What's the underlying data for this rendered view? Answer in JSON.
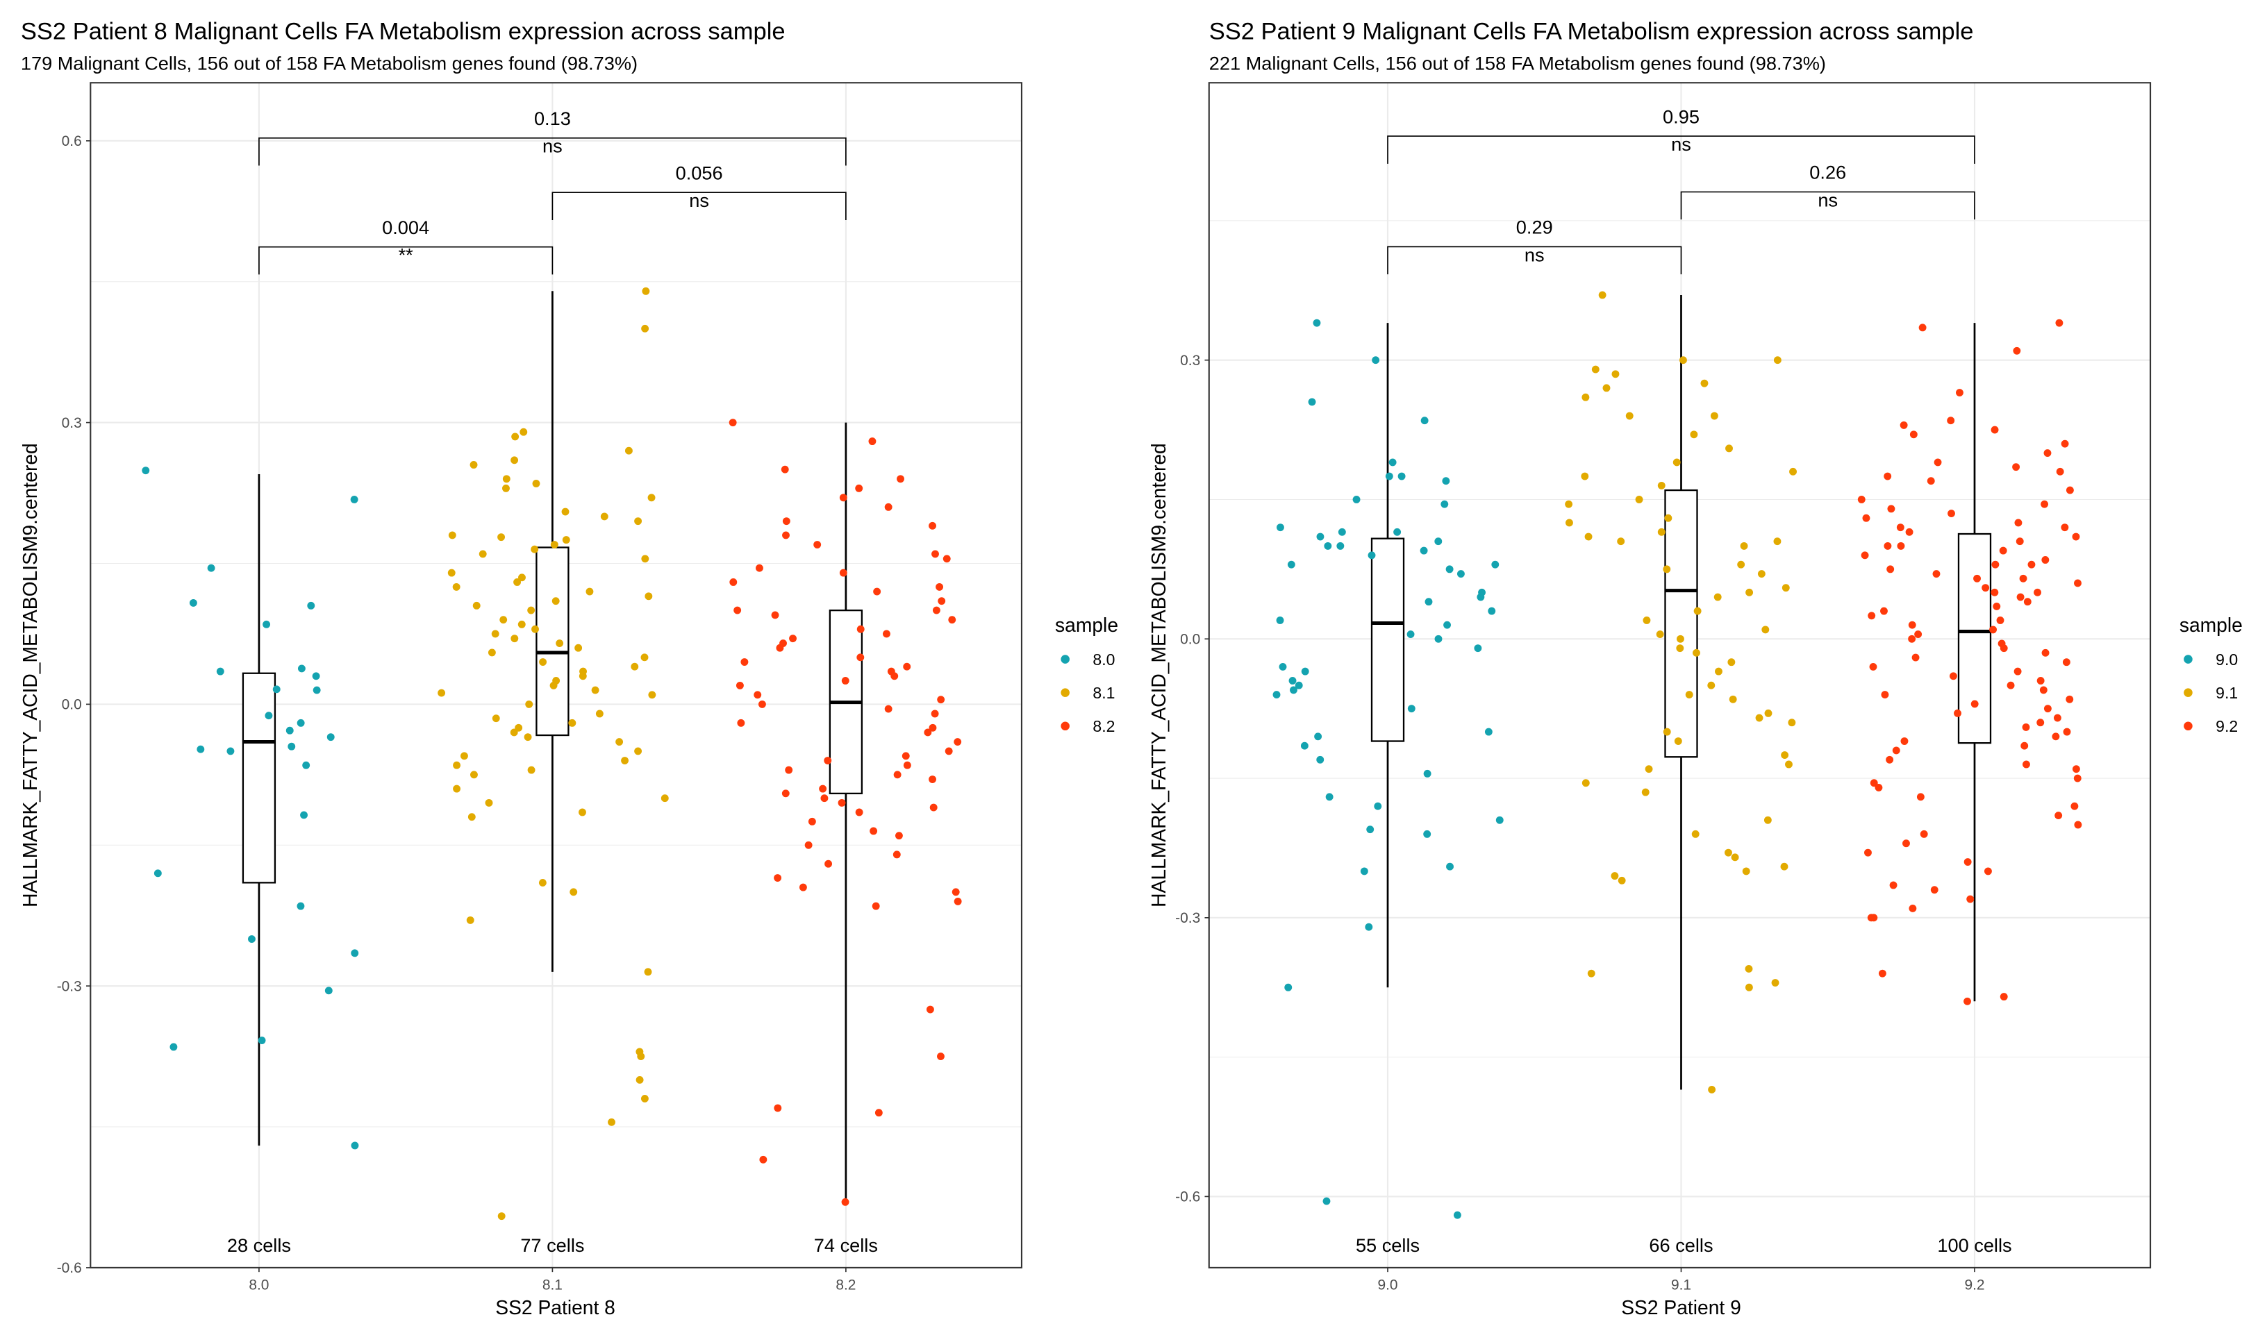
{
  "chart_data": [
    {
      "type": "box+jitter",
      "title": "SS2 Patient 8 Malignant Cells FA Metabolism expression across sample",
      "subtitle": "179 Malignant Cells, 156 out of 158 FA Metabolism genes found (98.73%)",
      "xlabel": "SS2 Patient 8",
      "ylabel": "HALLMARK_FATTY_ACID_METABOLISM9.centered",
      "ylim": [
        -0.6,
        0.66
      ],
      "yticks": [
        -0.6,
        -0.3,
        0.0,
        0.3,
        0.6
      ],
      "ytick_labels": [
        "-0.6",
        "-0.3",
        "0.0",
        "0.3",
        "0.6"
      ],
      "grid": true,
      "legend": {
        "title": "sample",
        "placement": "right"
      },
      "categories": [
        "8.0",
        "8.1",
        "8.2"
      ],
      "colors": [
        "#14A3B0",
        "#E2AA00",
        "#FF3A0A"
      ],
      "cell_labels": [
        "28 cells",
        "77 cells",
        "74 cells"
      ],
      "boxes": [
        {
          "median": -0.04,
          "q1": -0.19,
          "q3": 0.033,
          "whisker_low": -0.47,
          "whisker_high": 0.245
        },
        {
          "median": 0.055,
          "q1": -0.033,
          "q3": 0.167,
          "whisker_low": -0.285,
          "whisker_high": 0.44
        },
        {
          "median": 0.002,
          "q1": -0.095,
          "q3": 0.1,
          "whisker_low": -0.53,
          "whisker_high": 0.3
        }
      ],
      "points": [
        [
          0.249,
          0.218,
          0.145,
          0.108,
          0.105,
          0.085,
          0.035,
          0.03,
          0.015,
          -0.012,
          -0.02,
          -0.028,
          -0.035,
          -0.048,
          -0.05,
          -0.065,
          -0.118,
          -0.18,
          -0.215,
          -0.25,
          -0.265,
          -0.305,
          -0.365,
          -0.358,
          -0.47,
          0.038,
          -0.045,
          0.016
        ],
        [
          0.44,
          0.4,
          0.29,
          0.285,
          0.27,
          0.26,
          0.255,
          0.24,
          0.235,
          0.23,
          0.22,
          0.205,
          0.2,
          0.195,
          0.18,
          0.178,
          0.175,
          0.17,
          0.165,
          0.16,
          0.155,
          0.14,
          0.135,
          0.13,
          0.12,
          0.115,
          0.11,
          0.105,
          0.1,
          0.09,
          0.085,
          0.08,
          0.07,
          0.065,
          0.06,
          0.055,
          0.05,
          0.045,
          0.04,
          0.035,
          0.03,
          0.025,
          0.02,
          0.015,
          0.01,
          0.0,
          -0.01,
          -0.015,
          -0.02,
          -0.025,
          -0.03,
          -0.035,
          -0.04,
          -0.05,
          -0.055,
          -0.06,
          -0.065,
          -0.07,
          -0.075,
          -0.09,
          -0.1,
          -0.105,
          -0.115,
          -0.12,
          -0.19,
          -0.2,
          -0.23,
          -0.285,
          -0.37,
          -0.375,
          -0.4,
          -0.42,
          -0.445,
          -0.545,
          0.012,
          0.075,
          0.125
        ],
        [
          0.3,
          0.28,
          0.25,
          0.24,
          0.22,
          0.21,
          0.195,
          0.19,
          0.18,
          0.17,
          0.16,
          0.145,
          0.14,
          0.13,
          0.125,
          0.12,
          0.11,
          0.1,
          0.1,
          0.095,
          0.09,
          0.08,
          0.075,
          0.07,
          0.065,
          0.06,
          0.05,
          0.045,
          0.04,
          0.035,
          0.03,
          0.025,
          0.02,
          0.01,
          0.005,
          0.0,
          -0.005,
          -0.01,
          -0.02,
          -0.025,
          -0.03,
          -0.04,
          -0.05,
          -0.055,
          -0.06,
          -0.07,
          -0.075,
          -0.08,
          -0.09,
          -0.095,
          -0.1,
          -0.11,
          -0.115,
          -0.125,
          -0.135,
          -0.14,
          -0.15,
          -0.16,
          -0.17,
          -0.185,
          -0.195,
          -0.2,
          -0.21,
          -0.215,
          -0.325,
          -0.375,
          -0.43,
          -0.435,
          -0.485,
          -0.53,
          0.23,
          -0.065,
          0.155,
          -0.105
        ]
      ],
      "comparisons": [
        {
          "from": "8.0",
          "to": "8.2",
          "p": "0.13",
          "signif": "ns",
          "y": 0.603
        },
        {
          "from": "8.1",
          "to": "8.2",
          "p": "0.056",
          "signif": "ns",
          "y": 0.545
        },
        {
          "from": "8.0",
          "to": "8.1",
          "p": "0.004",
          "signif": "**",
          "y": 0.487
        }
      ]
    },
    {
      "type": "box+jitter",
      "title": "SS2 Patient 9 Malignant Cells FA Metabolism expression across sample",
      "subtitle": "221 Malignant Cells, 156 out of 158 FA Metabolism genes found (98.73%)",
      "xlabel": "SS2 Patient 9",
      "ylabel": "HALLMARK_FATTY_ACID_METABOLISM9.centered",
      "ylim": [
        -0.675,
        0.6
      ],
      "yticks": [
        -0.6,
        -0.3,
        0.0,
        0.3
      ],
      "ytick_labels": [
        "-0.6",
        "-0.3",
        "0.0",
        "0.3"
      ],
      "grid": true,
      "legend": {
        "title": "sample",
        "placement": "right"
      },
      "categories": [
        "9.0",
        "9.1",
        "9.2"
      ],
      "colors": [
        "#14A3B0",
        "#E2AA00",
        "#FF3A0A"
      ],
      "cell_labels": [
        "55 cells",
        "66 cells",
        "100 cells"
      ],
      "boxes": [
        {
          "median": 0.017,
          "q1": -0.11,
          "q3": 0.108,
          "whisker_low": -0.375,
          "whisker_high": 0.34
        },
        {
          "median": 0.052,
          "q1": -0.127,
          "q3": 0.16,
          "whisker_low": -0.485,
          "whisker_high": 0.37
        },
        {
          "median": 0.008,
          "q1": -0.112,
          "q3": 0.113,
          "whisker_low": -0.39,
          "whisker_high": 0.34
        }
      ],
      "points": [
        [
          0.34,
          0.3,
          0.255,
          0.235,
          0.19,
          0.175,
          0.175,
          0.17,
          0.15,
          0.145,
          0.12,
          0.115,
          0.115,
          0.11,
          0.105,
          0.1,
          0.1,
          0.095,
          0.09,
          0.08,
          0.075,
          0.07,
          0.05,
          0.045,
          0.04,
          0.03,
          0.02,
          0.015,
          0.005,
          0.0,
          -0.01,
          -0.03,
          -0.035,
          -0.045,
          -0.05,
          -0.055,
          -0.06,
          -0.075,
          -0.1,
          -0.105,
          -0.115,
          -0.13,
          -0.145,
          -0.17,
          -0.18,
          -0.195,
          -0.205,
          -0.21,
          -0.245,
          -0.25,
          -0.31,
          -0.375,
          -0.605,
          -0.62,
          0.08
        ],
        [
          0.37,
          0.3,
          0.3,
          0.29,
          0.285,
          0.275,
          0.27,
          0.26,
          0.24,
          0.24,
          0.22,
          0.19,
          0.18,
          0.175,
          0.165,
          0.15,
          0.145,
          0.125,
          0.115,
          0.11,
          0.105,
          0.105,
          0.1,
          0.08,
          0.075,
          0.07,
          0.055,
          0.05,
          0.045,
          0.03,
          0.02,
          0.005,
          0.0,
          -0.01,
          -0.015,
          -0.025,
          -0.035,
          -0.05,
          -0.065,
          -0.08,
          -0.085,
          -0.09,
          -0.1,
          -0.11,
          -0.125,
          -0.135,
          -0.14,
          -0.155,
          -0.165,
          -0.195,
          -0.23,
          -0.235,
          -0.245,
          -0.25,
          -0.255,
          -0.26,
          -0.355,
          -0.36,
          -0.37,
          -0.375,
          -0.485,
          0.205,
          -0.06,
          0.13,
          0.01,
          -0.21
        ],
        [
          0.34,
          0.335,
          0.31,
          0.265,
          0.235,
          0.23,
          0.225,
          0.22,
          0.21,
          0.2,
          0.19,
          0.185,
          0.18,
          0.175,
          0.17,
          0.16,
          0.15,
          0.14,
          0.135,
          0.13,
          0.125,
          0.12,
          0.12,
          0.115,
          0.11,
          0.105,
          0.1,
          0.1,
          0.095,
          0.09,
          0.085,
          0.08,
          0.08,
          0.075,
          0.07,
          0.065,
          0.06,
          0.055,
          0.05,
          0.05,
          0.045,
          0.04,
          0.035,
          0.03,
          0.025,
          0.02,
          0.015,
          0.01,
          0.005,
          0.0,
          -0.005,
          -0.01,
          -0.015,
          -0.02,
          -0.025,
          -0.03,
          -0.035,
          -0.04,
          -0.045,
          -0.05,
          -0.055,
          -0.06,
          -0.065,
          -0.07,
          -0.075,
          -0.08,
          -0.085,
          -0.09,
          -0.095,
          -0.1,
          -0.105,
          -0.11,
          -0.115,
          -0.12,
          -0.13,
          -0.14,
          -0.15,
          -0.155,
          -0.16,
          -0.17,
          -0.18,
          -0.19,
          -0.2,
          -0.21,
          -0.22,
          -0.23,
          -0.24,
          -0.25,
          -0.265,
          -0.27,
          -0.28,
          -0.29,
          -0.3,
          -0.3,
          -0.36,
          -0.385,
          -0.39,
          0.145,
          -0.135,
          0.065
        ]
      ],
      "comparisons": [
        {
          "from": "9.0",
          "to": "9.2",
          "p": "0.95",
          "signif": "ns",
          "y": 0.541
        },
        {
          "from": "9.1",
          "to": "9.2",
          "p": "0.26",
          "signif": "ns",
          "y": 0.481
        },
        {
          "from": "9.0",
          "to": "9.1",
          "p": "0.29",
          "signif": "ns",
          "y": 0.422
        }
      ]
    }
  ]
}
